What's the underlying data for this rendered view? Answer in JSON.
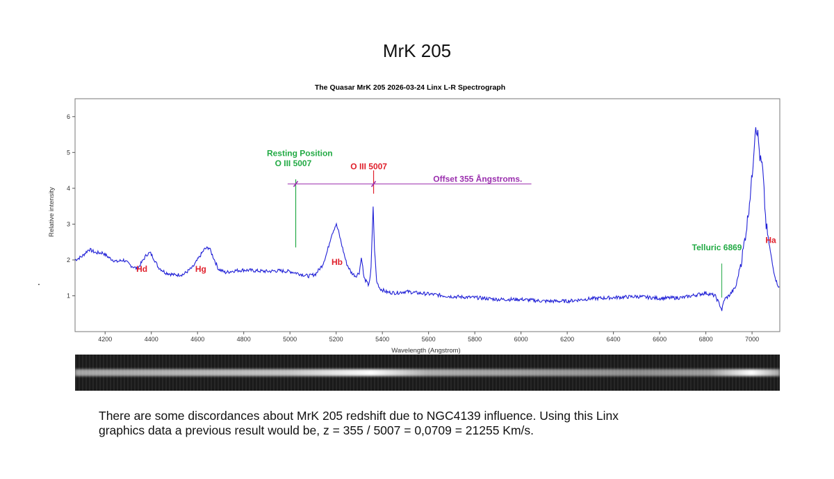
{
  "page": {
    "title": "MrK 205",
    "stray_mark": "."
  },
  "chart_data": {
    "type": "line",
    "title": "The Quasar  MrK 205  2026-03-24   Linx L-R Spectrograph",
    "xlabel": "Wavelength (Angstrom)",
    "ylabel": "Relative intensity",
    "xlim": [
      4070,
      7120
    ],
    "ylim": [
      0,
      6.5
    ],
    "xticks": [
      4200,
      4400,
      4600,
      4800,
      5000,
      5200,
      5400,
      5600,
      5800,
      6000,
      6200,
      6400,
      6600,
      6800,
      7000
    ],
    "yticks": [
      1,
      2,
      3,
      4,
      5,
      6
    ],
    "grid": false,
    "series": [
      {
        "color": "#1f1fd6",
        "x": [
          4070,
          4100,
          4130,
          4160,
          4190,
          4220,
          4250,
          4280,
          4310,
          4340,
          4360,
          4380,
          4395,
          4410,
          4430,
          4460,
          4500,
          4540,
          4580,
          4610,
          4630,
          4650,
          4670,
          4690,
          4720,
          4760,
          4800,
          4850,
          4900,
          4950,
          5000,
          5050,
          5080,
          5110,
          5140,
          5160,
          5180,
          5200,
          5210,
          5225,
          5245,
          5265,
          5285,
          5300,
          5310,
          5320,
          5340,
          5350,
          5360,
          5365,
          5375,
          5390,
          5420,
          5460,
          5500,
          5550,
          5600,
          5700,
          5800,
          5900,
          6000,
          6100,
          6200,
          6300,
          6400,
          6500,
          6600,
          6700,
          6800,
          6840,
          6860,
          6869,
          6880,
          6900,
          6930,
          6960,
          6980,
          7000,
          7015,
          7025,
          7035,
          7045,
          7060,
          7075,
          7090,
          7105,
          7120
        ],
        "y": [
          2.0,
          2.1,
          2.3,
          2.2,
          2.2,
          2.05,
          1.95,
          2.0,
          1.85,
          1.75,
          1.95,
          2.15,
          2.2,
          2.05,
          1.8,
          1.65,
          1.58,
          1.6,
          1.8,
          2.1,
          2.3,
          2.35,
          2.05,
          1.75,
          1.65,
          1.7,
          1.72,
          1.7,
          1.68,
          1.7,
          1.68,
          1.6,
          1.55,
          1.6,
          1.85,
          2.2,
          2.7,
          3.0,
          2.8,
          2.4,
          1.9,
          1.65,
          1.55,
          1.65,
          2.1,
          1.5,
          1.3,
          1.6,
          3.5,
          2.4,
          1.4,
          1.2,
          1.1,
          1.08,
          1.12,
          1.08,
          1.05,
          0.98,
          0.95,
          0.9,
          0.9,
          0.85,
          0.85,
          0.92,
          0.95,
          0.98,
          0.93,
          0.95,
          1.08,
          1.0,
          0.75,
          0.6,
          0.9,
          1.0,
          1.25,
          2.2,
          3.1,
          4.3,
          5.8,
          5.5,
          4.8,
          4.6,
          3.0,
          2.4,
          1.8,
          1.4,
          1.2
        ]
      }
    ],
    "annotations": [
      {
        "text": "Resting Position",
        "color": "#22aa44"
      },
      {
        "text": "O III 5007",
        "color": "#22aa44"
      },
      {
        "text": "O III  5007",
        "color": "#e0202c"
      },
      {
        "text": "Offset   355 Ångstroms.",
        "color": "#9b2fae"
      },
      {
        "text": "Telluric 6869",
        "color": "#22aa44"
      },
      {
        "text": "Hd",
        "color": "#e0202c"
      },
      {
        "text": "Hg",
        "color": "#e0202c"
      },
      {
        "text": "Hb",
        "color": "#e0202c"
      },
      {
        "text": "Ha",
        "color": "#e0202c"
      }
    ],
    "markers": {
      "resting_oiii_x": 5025,
      "observed_oiii_x": 5362,
      "telluric_x": 6869,
      "offset_line_y": 4.12,
      "offset_line_x_range": [
        4990,
        6045
      ]
    }
  },
  "caption": {
    "line1": "There are some discordances about  MrK 205 redshift due to NGC4139 influence. Using this Linx",
    "line2": "graphics data a previous result would be,  z = 355 / 5007 = 0,0709 = 21255 Km/s."
  }
}
